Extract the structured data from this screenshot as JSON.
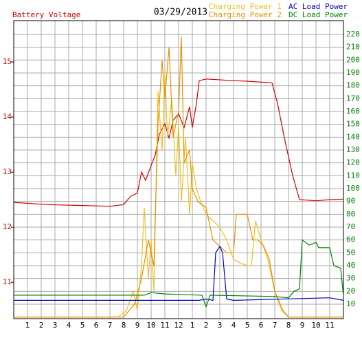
{
  "chart_data": {
    "type": "line",
    "title": "03/29/2013",
    "xlim": [
      0,
      24
    ],
    "xticks": [
      1,
      2,
      3,
      4,
      5,
      6,
      7,
      8,
      9,
      10,
      11,
      12,
      {
        "value": 13,
        "label": "1"
      },
      {
        "value": 14,
        "label": "2"
      },
      {
        "value": 15,
        "label": "3"
      },
      {
        "value": 16,
        "label": "4"
      },
      {
        "value": 17,
        "label": "5"
      },
      {
        "value": 18,
        "label": "6"
      },
      {
        "value": 19,
        "label": "7"
      },
      {
        "value": 20,
        "label": "8"
      },
      {
        "value": 21,
        "label": "9"
      },
      {
        "value": 22,
        "label": "10"
      },
      {
        "value": 23,
        "label": "11"
      }
    ],
    "ylim": [
      10.34,
      15.75
    ],
    "yticks": [
      11,
      12,
      13,
      14,
      15
    ],
    "y2lim": [
      -1.25,
      230.7
    ],
    "y2ticks": [
      10,
      20,
      30,
      40,
      50,
      60,
      70,
      80,
      90,
      100,
      110,
      120,
      130,
      140,
      150,
      160,
      170,
      180,
      190,
      200,
      210,
      220
    ],
    "grid": true,
    "series": [
      {
        "name": "Battery Voltage",
        "color": "#d00000",
        "axis": "y",
        "x": [
          0,
          2.5,
          7,
          8,
          8.5,
          9,
          9.3,
          9.6,
          10,
          10.3,
          10.6,
          11,
          11.3,
          11.6,
          12,
          12.4,
          12.8,
          13,
          13.3,
          13.5,
          14,
          16,
          17,
          18.8,
          19.2,
          19.7,
          20.3,
          20.8,
          22,
          23,
          24
        ],
        "values": [
          12.45,
          12.41,
          12.38,
          12.41,
          12.56,
          12.62,
          13.0,
          12.85,
          13.12,
          13.31,
          13.69,
          13.88,
          13.62,
          13.94,
          14.06,
          13.81,
          14.19,
          13.81,
          14.25,
          14.66,
          14.69,
          14.66,
          14.65,
          14.62,
          14.25,
          13.62,
          12.94,
          12.5,
          12.48,
          12.5,
          12.51
        ]
      },
      {
        "name": "Charging Power 1",
        "color": "#f0c020",
        "axis": "y2",
        "x": [
          0,
          7.6,
          8.2,
          8.7,
          9,
          9.3,
          9.5,
          9.8,
          10,
          10.2,
          10.5,
          10.8,
          11,
          11.2,
          11.5,
          11.8,
          12,
          12.2,
          12.5,
          12.8,
          13,
          13.3,
          13.6,
          14,
          14.5,
          15,
          15.5,
          16,
          16.5,
          17,
          17.3,
          17.6,
          18,
          18.5,
          19,
          19.5,
          20,
          24
        ],
        "values": [
          0,
          0,
          5,
          20,
          5,
          40,
          85,
          30,
          60,
          20,
          175,
          130,
          190,
          140,
          170,
          110,
          150,
          90,
          140,
          80,
          120,
          100,
          90,
          80,
          75,
          70,
          60,
          45,
          42,
          40,
          40,
          75,
          60,
          45,
          20,
          5,
          0,
          0
        ]
      },
      {
        "name": "Charging Power 2",
        "color": "#e89000",
        "axis": "y2",
        "x": [
          0,
          8,
          8.8,
          9.3,
          9.8,
          10.2,
          10.5,
          10.8,
          11,
          11.3,
          11.6,
          12,
          12.2,
          12.4,
          12.8,
          13,
          13.4,
          14,
          14.5,
          15,
          15.5,
          16,
          16.2,
          17,
          17.4,
          17.8,
          18.2,
          18.6,
          19,
          19.6,
          20,
          24
        ],
        "values": [
          0,
          0,
          10,
          30,
          60,
          40,
          150,
          200,
          170,
          210,
          140,
          160,
          218,
          120,
          130,
          100,
          90,
          85,
          60,
          55,
          50,
          50,
          80,
          80,
          60,
          60,
          55,
          45,
          20,
          5,
          0,
          0
        ]
      },
      {
        "name": "AC Load Power",
        "color": "#0000c0",
        "axis": "y2",
        "x": [
          0,
          12,
          13.5,
          14,
          14.5,
          14.7,
          15,
          15.2,
          15.5,
          16,
          23,
          24
        ],
        "values": [
          13,
          13,
          13,
          14,
          13,
          50,
          55,
          50,
          14,
          13,
          15,
          13
        ]
      },
      {
        "name": "DC Load Power",
        "color": "#008000",
        "axis": "y2",
        "x": [
          0,
          9.5,
          10,
          11,
          13.7,
          14,
          14.3,
          19,
          20,
          20.4,
          20.8,
          21,
          21.5,
          22,
          22.2,
          23,
          23.3,
          23.8,
          24
        ],
        "values": [
          17,
          17,
          19,
          18,
          17,
          8,
          17,
          16,
          15,
          20,
          22,
          60,
          56,
          58,
          54,
          54,
          40,
          38,
          16
        ]
      }
    ]
  }
}
